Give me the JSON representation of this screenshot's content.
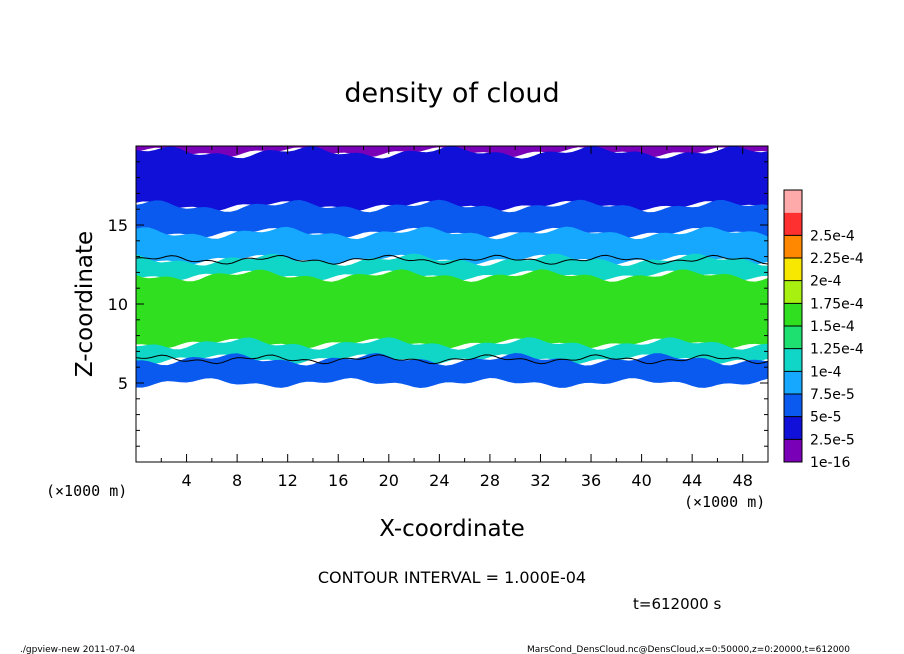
{
  "chart_data": {
    "type": "heatmap",
    "title": "density of cloud",
    "xlabel": "X-coordinate",
    "ylabel": "Z-coordinate",
    "x_unit_left": "(×1000 m)",
    "x_unit_right": "(×1000 m)",
    "xlim": [
      0,
      50
    ],
    "ylim": [
      0,
      20
    ],
    "x_ticks": [
      4,
      8,
      12,
      16,
      20,
      24,
      28,
      32,
      36,
      40,
      44,
      48
    ],
    "y_ticks": [
      5,
      10,
      15
    ],
    "colorbar": {
      "levels": [
        "1e-16",
        "2.5e-5",
        "5e-5",
        "7.5e-5",
        "1e-4",
        "1.25e-4",
        "1.5e-4",
        "1.75e-4",
        "2e-4",
        "2.25e-4",
        "2.5e-4"
      ],
      "colors": [
        "#7a00b8",
        "#1010d8",
        "#0a5af0",
        "#16a8ff",
        "#10d6c8",
        "#1ee070",
        "#30e020",
        "#a8f010",
        "#f8e800",
        "#ff8800",
        "#ff3030",
        "#ffaaaa"
      ]
    },
    "bands": [
      {
        "level": "1e-16",
        "z_bottom": 19.6,
        "z_top": 20.0
      },
      {
        "level": "2.5e-5",
        "z_bottom": 16.2,
        "z_top": 19.6
      },
      {
        "level": "5e-5",
        "z_bottom": 14.5,
        "z_top": 16.2
      },
      {
        "level": "7.5e-5",
        "z_bottom": 12.8,
        "z_top": 14.5
      },
      {
        "level": "1e-4",
        "z_bottom": 11.8,
        "z_top": 12.8
      },
      {
        "level": "1.5e-4",
        "z_bottom": 7.5,
        "z_top": 11.8
      },
      {
        "level": "1e-4",
        "z_bottom": 6.5,
        "z_top": 7.5
      },
      {
        "level": "5e-5",
        "z_bottom": 5.0,
        "z_top": 6.5
      }
    ],
    "contour_interval": "CONTOUR INTERVAL = 1.000E-04",
    "time_label": "t=612000 s"
  },
  "footer": {
    "left": "./gpview-new  2011-07-04",
    "right": "MarsCond_DensCloud.nc@DensCloud,x=0:50000,z=0:20000,t=612000"
  }
}
